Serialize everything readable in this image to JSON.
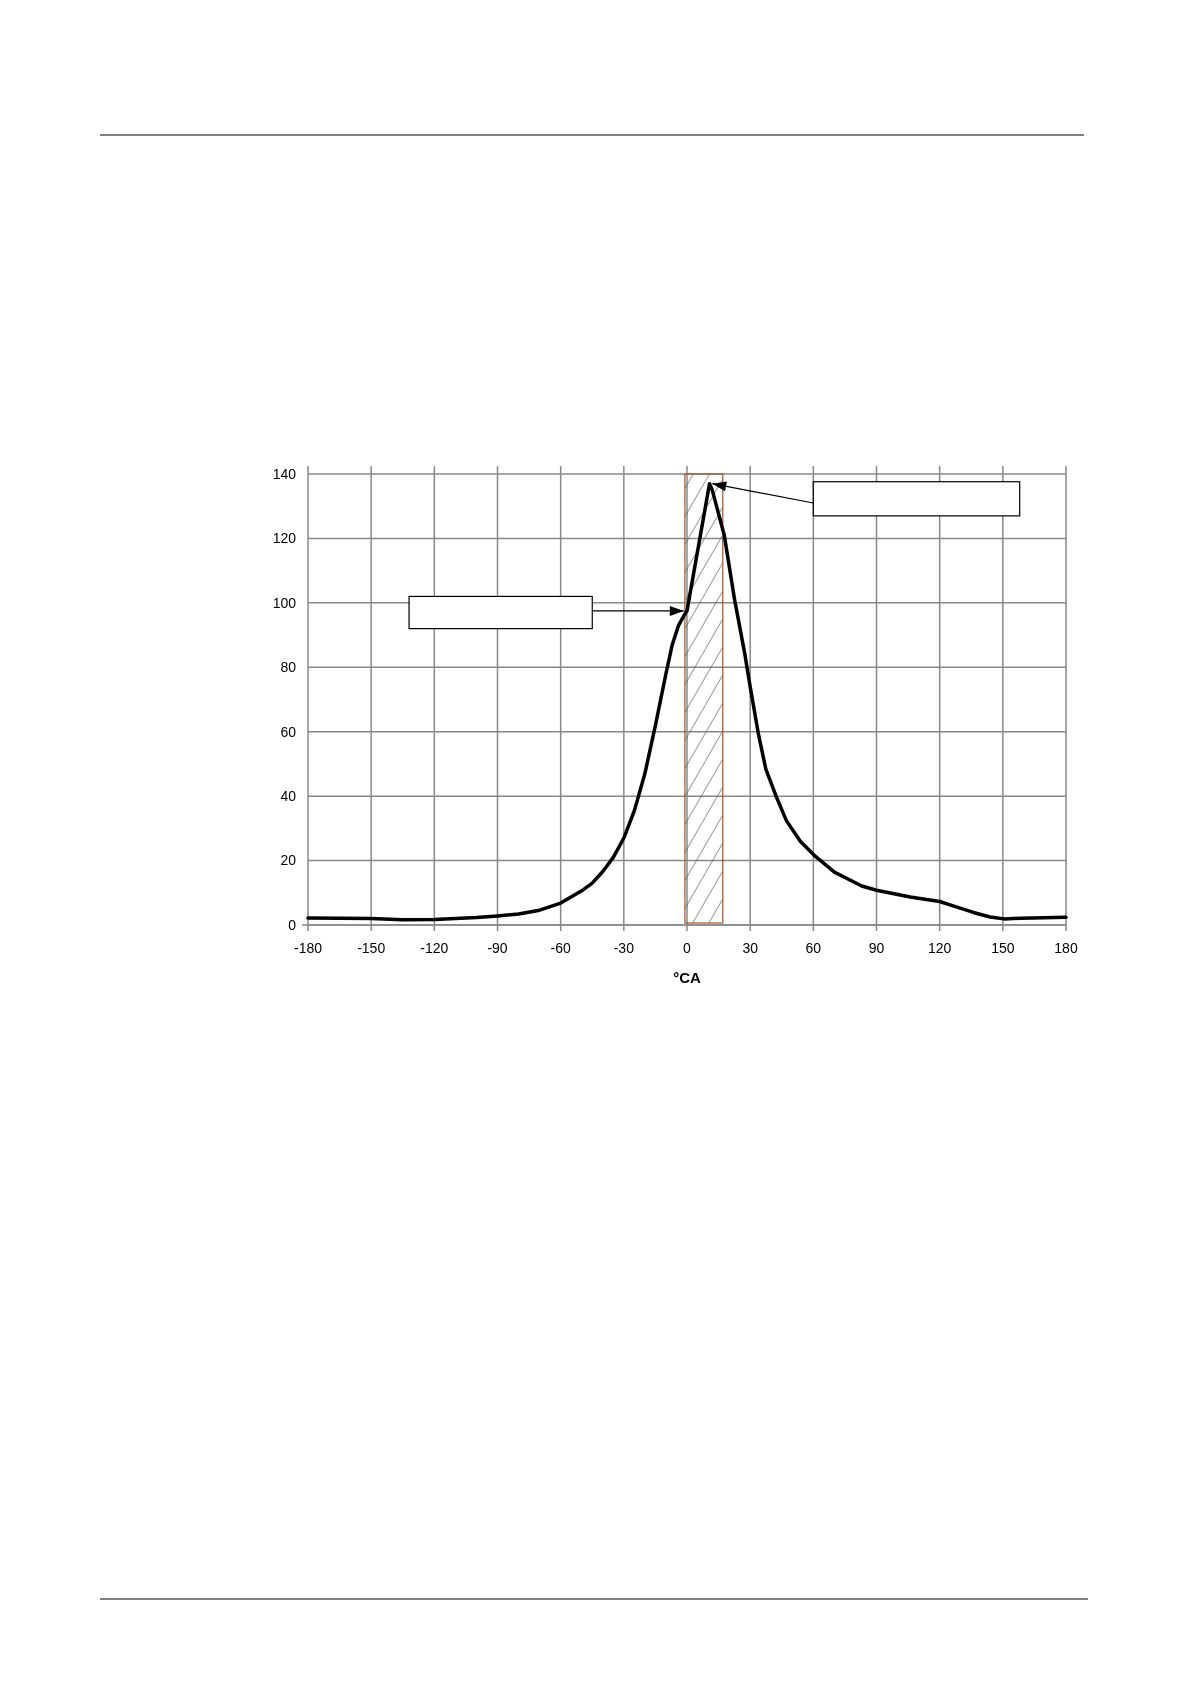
{
  "chart_data": {
    "type": "line",
    "xlabel": "°CA",
    "series": [
      {
        "color": "#000000",
        "x": [
          -180,
          -150,
          -135,
          -120,
          -100,
          -90,
          -80,
          -70,
          -60,
          -50,
          -45,
          -40,
          -35,
          -30,
          -25,
          -20,
          -15,
          -10,
          -7,
          -4,
          -1.5,
          0,
          10.7,
          12,
          17.7,
          22.6,
          27.5,
          30,
          34,
          37.4,
          42.3,
          47.2,
          53.8,
          60.3,
          70,
          83,
          90,
          106,
          120,
          127.5,
          136,
          144,
          150.5,
          158.7,
          180
        ],
        "values": [
          2.2,
          2.0,
          1.6,
          1.7,
          2.3,
          2.8,
          3.4,
          4.6,
          6.8,
          10.6,
          13,
          16.6,
          21,
          27,
          35.5,
          47,
          62,
          78,
          87,
          93,
          96,
          97.5,
          137,
          135,
          121,
          101,
          84,
          74,
          59,
          48.5,
          40,
          32.4,
          26,
          21.7,
          16.4,
          12.1,
          10.8,
          8.7,
          7.3,
          5.7,
          3.9,
          2.5,
          1.9,
          2.1,
          2.4
        ]
      }
    ],
    "bands": [
      {
        "axis": "x",
        "from": -1,
        "to": 17,
        "color": "#a0522d"
      }
    ],
    "xlim": [
      -180,
      180
    ],
    "xticks": [
      -180,
      -150,
      -120,
      -90,
      -60,
      -30,
      0,
      30,
      60,
      90,
      120,
      150,
      180
    ],
    "ylim": [
      0,
      140
    ],
    "yticks": [
      0,
      20,
      40,
      60,
      80,
      100,
      120,
      140
    ],
    "grid": true,
    "line_style": "solid",
    "marker": "none"
  }
}
